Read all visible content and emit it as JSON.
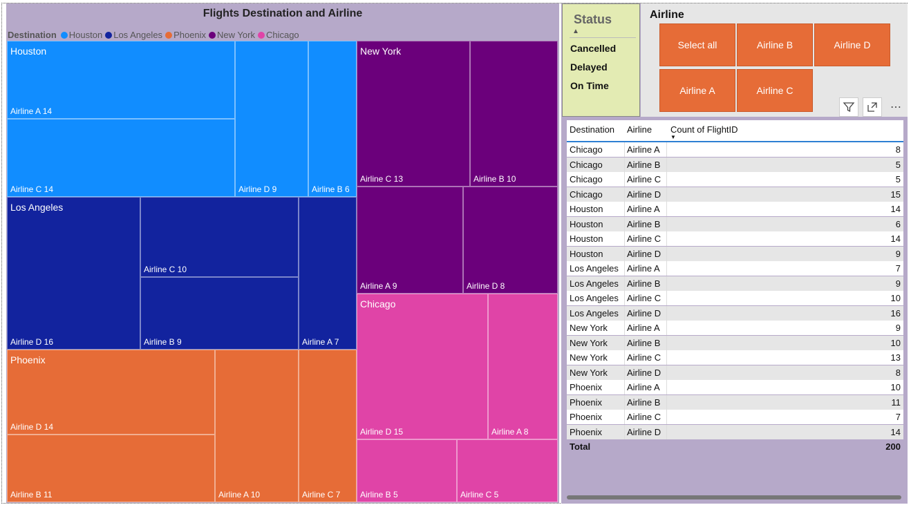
{
  "treemap": {
    "title": "Flights Destination and Airline",
    "legend_title": "Destination",
    "legend": [
      {
        "name": "Houston",
        "color": "#118dff"
      },
      {
        "name": "Los Angeles",
        "color": "#12239e"
      },
      {
        "name": "Phoenix",
        "color": "#e66c37"
      },
      {
        "name": "New York",
        "color": "#6b007b"
      },
      {
        "name": "Chicago",
        "color": "#e044a7"
      }
    ],
    "groups": {
      "houston": "Houston",
      "los_angeles": "Los Angeles",
      "phoenix": "Phoenix",
      "new_york": "New York",
      "chicago": "Chicago"
    },
    "cells": {
      "hou_a": "Airline A 14",
      "hou_c": "Airline C 14",
      "hou_d": "Airline D 9",
      "hou_b": "Airline B 6",
      "la_c": "Airline C 10",
      "la_d": "Airline D 16",
      "la_b": "Airline B 9",
      "la_a": "Airline A 7",
      "phx_d": "Airline D 14",
      "phx_b": "Airline B 11",
      "phx_a": "Airline A 10",
      "phx_c": "Airline C 7",
      "ny_c": "Airline C 13",
      "ny_b": "Airline B 10",
      "ny_a": "Airline A 9",
      "ny_d": "Airline D 8",
      "chi_d": "Airline D 15",
      "chi_a": "Airline A 8",
      "chi_b": "Airline B 5",
      "chi_c": "Airline C 5"
    }
  },
  "status_slicer": {
    "title": "Status",
    "items": [
      "Cancelled",
      "Delayed",
      "On Time"
    ]
  },
  "airline_slicer": {
    "title": "Airline",
    "buttons": [
      "Select all",
      "Airline B",
      "Airline D",
      "Airline A",
      "Airline C"
    ],
    "button_color": "#e66c37"
  },
  "toolbar": {
    "filter_icon": "filter-icon",
    "focus_icon": "focus-mode-icon",
    "more_icon": "more-options-icon"
  },
  "table": {
    "headers": [
      "Destination",
      "Airline",
      "Count of FlightID"
    ],
    "rows": [
      [
        "Chicago",
        "Airline A",
        "8"
      ],
      [
        "Chicago",
        "Airline B",
        "5"
      ],
      [
        "Chicago",
        "Airline C",
        "5"
      ],
      [
        "Chicago",
        "Airline D",
        "15"
      ],
      [
        "Houston",
        "Airline A",
        "14"
      ],
      [
        "Houston",
        "Airline B",
        "6"
      ],
      [
        "Houston",
        "Airline C",
        "14"
      ],
      [
        "Houston",
        "Airline D",
        "9"
      ],
      [
        "Los Angeles",
        "Airline A",
        "7"
      ],
      [
        "Los Angeles",
        "Airline B",
        "9"
      ],
      [
        "Los Angeles",
        "Airline C",
        "10"
      ],
      [
        "Los Angeles",
        "Airline D",
        "16"
      ],
      [
        "New York",
        "Airline A",
        "9"
      ],
      [
        "New York",
        "Airline B",
        "10"
      ],
      [
        "New York",
        "Airline C",
        "13"
      ],
      [
        "New York",
        "Airline D",
        "8"
      ],
      [
        "Phoenix",
        "Airline A",
        "10"
      ],
      [
        "Phoenix",
        "Airline B",
        "11"
      ],
      [
        "Phoenix",
        "Airline C",
        "7"
      ],
      [
        "Phoenix",
        "Airline D",
        "14"
      ]
    ],
    "total_label": "Total",
    "total_value": "200"
  }
}
